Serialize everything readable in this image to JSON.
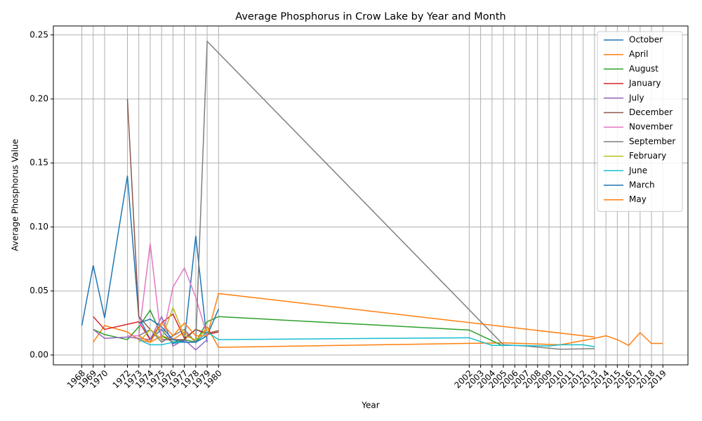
{
  "chart_data": {
    "type": "line",
    "title": "Average Phosphorus in Crow Lake by Year and Month",
    "x_label": "Year",
    "y_label": "Average Phosphorus Value",
    "xlim": [
      1965.5,
      2021.2
    ],
    "ylim": [
      -0.0077,
      0.257
    ],
    "xticks": [
      1968,
      1969,
      1970,
      1972,
      1973,
      1974,
      1975,
      1976,
      1977,
      1978,
      1979,
      1980,
      2002,
      2003,
      2004,
      2005,
      2006,
      2007,
      2008,
      2009,
      2010,
      2011,
      2012,
      2013,
      2014,
      2015,
      2016,
      2017,
      2018,
      2019
    ],
    "yticks": [
      {
        "value": 0,
        "label": "0.00"
      },
      {
        "value": 0.05,
        "label": "0.05"
      },
      {
        "value": 0.1,
        "label": "0.10"
      },
      {
        "value": 0.15,
        "label": "0.15"
      },
      {
        "value": 0.2,
        "label": "0.20"
      },
      {
        "value": 0.25,
        "label": "0.25"
      }
    ],
    "grid": true,
    "legend": "upper right",
    "series": [
      {
        "name": "October",
        "color": "#1f77b4",
        "x": [
          1968,
          1969,
          1970,
          1972,
          1973,
          1974,
          1975,
          1976,
          1977,
          1978,
          1979
        ],
        "values": [
          0.023,
          0.07,
          0.029,
          0.14,
          0.03,
          0.012,
          0.02,
          0.009,
          0.011,
          0.093,
          0.01
        ]
      },
      {
        "name": "April",
        "color": "#ff7f0e",
        "x": [
          1969,
          1970,
          1972,
          1973,
          1974,
          1975,
          1976,
          1977,
          1978,
          1979,
          1980,
          2005,
          2010,
          2013,
          2014,
          2015,
          2016,
          2017,
          2018,
          2019
        ],
        "values": [
          0.01,
          0.023,
          0.018,
          0.012,
          0.01,
          0.015,
          0.012,
          0.018,
          0.01,
          0.022,
          0.006,
          0.0095,
          0.008,
          0.013,
          0.015,
          0.012,
          0.0075,
          0.0175,
          0.009,
          0.009
        ]
      },
      {
        "name": "August",
        "color": "#2ca02c",
        "x": [
          1969,
          1970,
          1972,
          1973,
          1974,
          1975,
          1976,
          1977,
          1978,
          1979,
          1980,
          2002,
          2005
        ],
        "values": [
          0.02,
          0.016,
          0.012,
          0.022,
          0.035,
          0.015,
          0.01,
          0.012,
          0.01,
          0.026,
          0.03,
          0.0195,
          0.007
        ]
      },
      {
        "name": "January",
        "color": "#d62728",
        "x": [
          1969,
          1970,
          1973,
          1974,
          1975,
          1976,
          1977,
          1978,
          1979,
          1980
        ],
        "values": [
          0.03,
          0.02,
          0.026,
          0.012,
          0.025,
          0.032,
          0.013,
          0.02,
          0.016,
          0.018
        ]
      },
      {
        "name": "July",
        "color": "#9467bd",
        "x": [
          1969,
          1970,
          1972,
          1973,
          1974,
          1975,
          1976,
          1977,
          1978,
          1979
        ],
        "values": [
          0.02,
          0.013,
          0.014,
          0.013,
          0.012,
          0.03,
          0.007,
          0.012,
          0.004,
          0.012
        ]
      },
      {
        "name": "December",
        "color": "#8c564b",
        "x": [
          1972,
          1973,
          1974,
          1975,
          1976,
          1977,
          1978,
          1979,
          1980
        ],
        "values": [
          0.2,
          0.03,
          0.02,
          0.012,
          0.012,
          0.012,
          0.02,
          0.017,
          0.019
        ]
      },
      {
        "name": "November",
        "color": "#e377c2",
        "x": [
          1972,
          1973,
          1974,
          1975,
          1976,
          1977,
          1978,
          1979
        ],
        "values": [
          0.015,
          0.015,
          0.087,
          0.01,
          0.053,
          0.068,
          0.045,
          0.015
        ]
      },
      {
        "name": "September",
        "color": "#7f7f7f",
        "x": [
          1973,
          1974,
          1975,
          1976,
          1977,
          1978,
          1979,
          2005,
          2006,
          2007,
          2010,
          2013
        ],
        "values": [
          0.015,
          0.02,
          0.01,
          0.015,
          0.02,
          0.01,
          0.245,
          0.008,
          0.0075,
          0.007,
          0.0045,
          0.005
        ]
      },
      {
        "name": "February",
        "color": "#bcbd22",
        "x": [
          1973,
          1974,
          1975,
          1976,
          1977,
          1978,
          1979
        ],
        "values": [
          0.01,
          0.02,
          0.012,
          0.037,
          0.015,
          0.012,
          0.02
        ]
      },
      {
        "name": "June",
        "color": "#17becf",
        "x": [
          1973,
          1974,
          1975,
          1976,
          1977,
          1978,
          1979,
          1980,
          2002,
          2004,
          2006,
          2009,
          2010,
          2012,
          2013
        ],
        "values": [
          0.012,
          0.008,
          0.008,
          0.01,
          0.01,
          0.01,
          0.018,
          0.012,
          0.0135,
          0.0075,
          0.0075,
          0.007,
          0.008,
          0.008,
          0.0065
        ]
      },
      {
        "name": "March",
        "color": "#1f77b4",
        "x": [
          1973,
          1974,
          1975,
          1976,
          1977,
          1978,
          1979,
          1980
        ],
        "values": [
          0.025,
          0.028,
          0.022,
          0.012,
          0.01,
          0.01,
          0.015,
          0.036
        ]
      },
      {
        "name": "May",
        "color": "#ff7f0e",
        "x": [
          1973,
          1974,
          1975,
          1976,
          1977,
          1978,
          1979,
          1980,
          2013
        ],
        "values": [
          0.015,
          0.01,
          0.025,
          0.015,
          0.025,
          0.015,
          0.015,
          0.048,
          0.014
        ]
      }
    ]
  }
}
